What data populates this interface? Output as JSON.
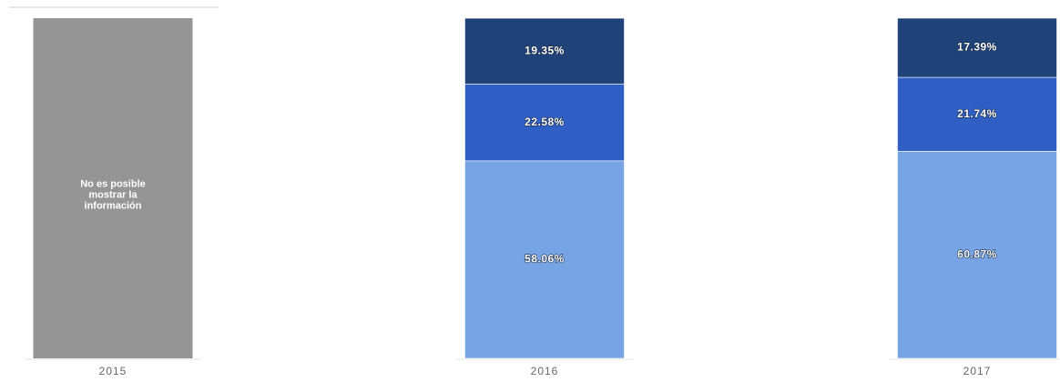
{
  "chart_data": {
    "type": "bar",
    "stacked": true,
    "normalized_percent": true,
    "categories": [
      "2015",
      "2016",
      "2017"
    ],
    "series": [
      {
        "values": [
          null,
          58.06,
          60.87
        ],
        "labels": [
          "",
          "58.06%",
          "60.87%"
        ],
        "color": "#76a4e4"
      },
      {
        "values": [
          null,
          22.58,
          21.74
        ],
        "labels": [
          "",
          "22.58%",
          "21.74%"
        ],
        "color": "#2f5fc4"
      },
      {
        "values": [
          null,
          19.35,
          17.39
        ],
        "labels": [
          "",
          "19.35%",
          "17.39%"
        ],
        "color": "#1f4279"
      }
    ],
    "unavailable": {
      "category": "2015",
      "text_lines": [
        "No es posible",
        "mostrar la",
        "información"
      ],
      "color": "#959595"
    },
    "ylim": [
      0,
      100
    ],
    "grid": false,
    "legend": "none"
  }
}
